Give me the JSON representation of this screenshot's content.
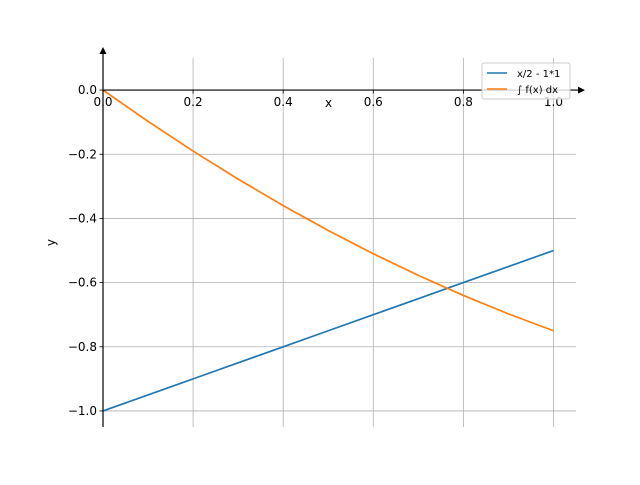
{
  "chart_data": {
    "type": "line",
    "xlabel": "x",
    "ylabel": "y",
    "xlim": [
      0.0,
      1.05
    ],
    "ylim": [
      -1.05,
      0.1
    ],
    "x_ticks": [
      0.0,
      0.2,
      0.4,
      0.6,
      0.8,
      1.0
    ],
    "x_tick_labels": [
      "0.0",
      "0.2",
      "0.4",
      "0.6",
      "0.8",
      "1.0"
    ],
    "y_ticks": [
      0.0,
      -0.2,
      -0.4,
      -0.6,
      -0.8,
      -1.0
    ],
    "y_tick_labels": [
      "0.0",
      "−0.2",
      "−0.4",
      "−0.6",
      "−0.8",
      "−1.0"
    ],
    "grid": true,
    "legend_position": "top-right",
    "series": [
      {
        "name": "x/2 - 1*1",
        "color": "#1f77b4",
        "x": [
          0.0,
          0.1,
          0.2,
          0.3,
          0.4,
          0.5,
          0.6,
          0.7,
          0.8,
          0.9,
          1.0
        ],
        "y": [
          -1.0,
          -0.95,
          -0.9,
          -0.85,
          -0.8,
          -0.75,
          -0.7,
          -0.65,
          -0.6,
          -0.55,
          -0.5
        ]
      },
      {
        "name": "∫ f(x) dx",
        "color": "#ff7f0e",
        "x": [
          0.0,
          0.1,
          0.2,
          0.3,
          0.4,
          0.5,
          0.6,
          0.7,
          0.8,
          0.9,
          1.0
        ],
        "y": [
          0.0,
          -0.0975,
          -0.19,
          -0.2775,
          -0.36,
          -0.4375,
          -0.51,
          -0.5775,
          -0.64,
          -0.6975,
          -0.75
        ]
      }
    ]
  }
}
